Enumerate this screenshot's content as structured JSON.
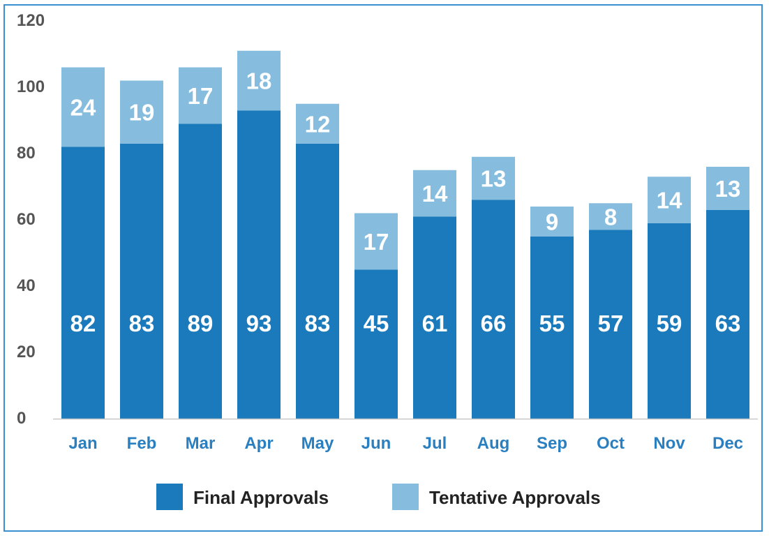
{
  "chart_data": {
    "type": "bar",
    "stacked": true,
    "categories": [
      "Jan",
      "Feb",
      "Mar",
      "Apr",
      "May",
      "Jun",
      "Jul",
      "Aug",
      "Sep",
      "Oct",
      "Nov",
      "Dec"
    ],
    "series": [
      {
        "name": "Final Approvals",
        "color": "#1a7abb",
        "values": [
          82,
          83,
          89,
          93,
          83,
          45,
          61,
          66,
          55,
          57,
          59,
          63
        ]
      },
      {
        "name": "Tentative Approvals",
        "color": "#86bcde",
        "values": [
          24,
          19,
          17,
          18,
          12,
          17,
          14,
          13,
          9,
          8,
          14,
          13
        ]
      }
    ],
    "ylim": [
      0,
      120
    ],
    "yticks": [
      "0",
      "20",
      "40",
      "60",
      "80",
      "100",
      "120"
    ],
    "grid": false,
    "legend_position": "bottom",
    "title": "",
    "xlabel": "",
    "ylabel": ""
  }
}
